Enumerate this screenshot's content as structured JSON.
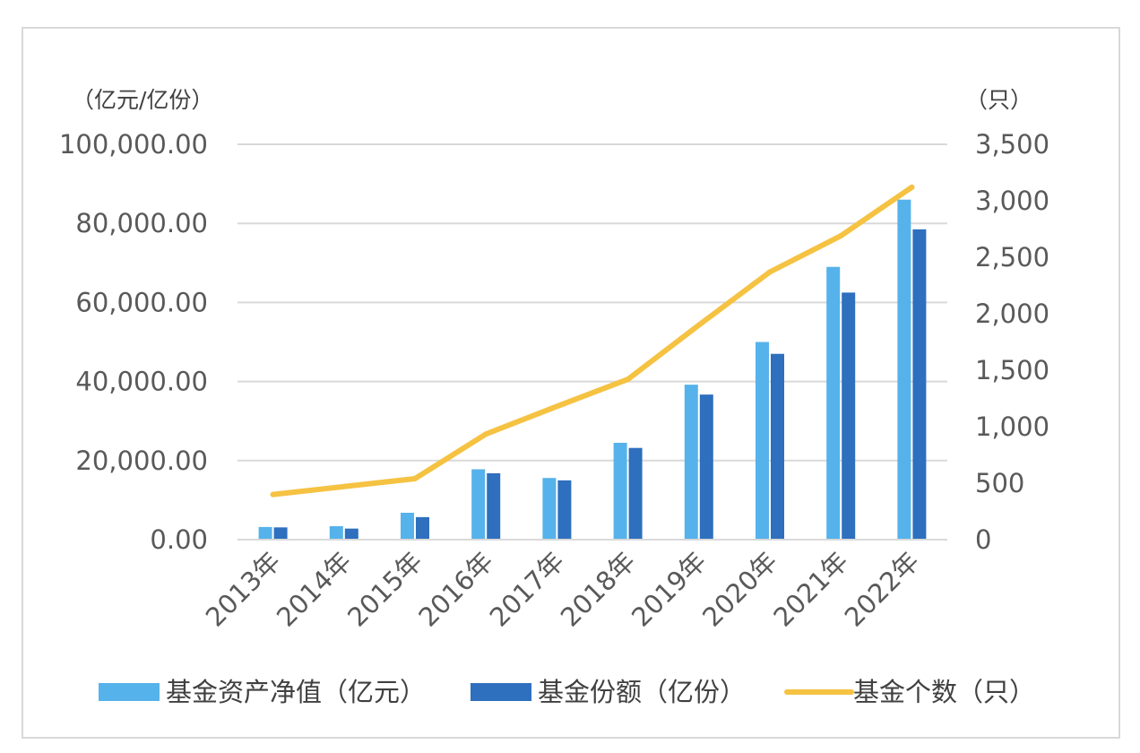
{
  "chart_data": {
    "type": "bar",
    "title": "",
    "categories": [
      "2013年",
      "2014年",
      "2015年",
      "2016年",
      "2017年",
      "2018年",
      "2019年",
      "2020年",
      "2021年",
      "2022年"
    ],
    "series": [
      {
        "name": "基金资产净值（亿元）",
        "type": "bar",
        "axis": "left",
        "color": "#56b2ea",
        "values": [
          3200,
          3400,
          6800,
          17800,
          15600,
          24500,
          39200,
          50000,
          69000,
          86000
        ]
      },
      {
        "name": "基金份额（亿份）",
        "type": "bar",
        "axis": "left",
        "color": "#2e6fbe",
        "values": [
          3100,
          2800,
          5700,
          16800,
          15000,
          23200,
          36700,
          47000,
          62500,
          78500
        ]
      },
      {
        "name": "基金个数（只）",
        "type": "line",
        "axis": "right",
        "color": "#f5c242",
        "values": [
          400,
          470,
          540,
          935,
          1180,
          1420,
          1900,
          2370,
          2690,
          3120
        ]
      }
    ],
    "left_axis": {
      "unit_label": "（亿元/亿份）",
      "ylim": [
        0,
        100000
      ],
      "ticks": [
        "0.00",
        "20,000.00",
        "40,000.00",
        "60,000.00",
        "80,000.00",
        "100,000.00"
      ]
    },
    "right_axis": {
      "unit_label": "（只）",
      "ylim": [
        0,
        3500
      ],
      "ticks": [
        "0",
        "500",
        "1,000",
        "1,500",
        "2,000",
        "2,500",
        "3,000",
        "3,500"
      ]
    },
    "grid": true,
    "legend_position": "bottom"
  }
}
